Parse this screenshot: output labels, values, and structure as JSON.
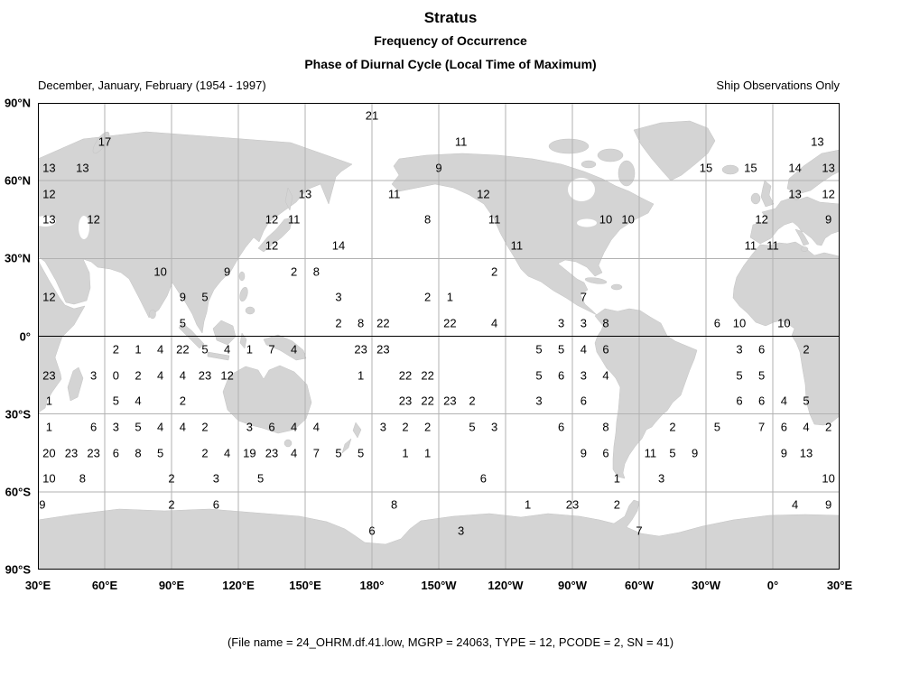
{
  "header": {
    "title": "Stratus",
    "subtitle1": "Frequency of Occurrence",
    "subtitle2": "Phase of Diurnal Cycle (Local Time of Maximum)",
    "period": "December, January, February (1954 - 1997)",
    "source_note": "Ship Observations Only"
  },
  "footer": {
    "file_info": "(File name = 24_OHRM.df.41.low, MGRP = 24063, TYPE = 12, PCODE = 2, SN = 41)"
  },
  "colors": {
    "land": "#d4d4d4",
    "land_outline": "#c3c3c3",
    "grid": "#b2b2b2",
    "equator": "#000000",
    "border": "#000000",
    "text": "#000000"
  },
  "chart_data": {
    "type": "scatter",
    "subtype": "geographic-grid-values",
    "projection": "equirectangular",
    "title": "Stratus",
    "subtitle1": "Frequency of Occurrence",
    "subtitle2": "Phase of Diurnal Cycle (Local Time of Maximum)",
    "value_meaning": "local time of maximum (hour of day, 0-23)",
    "x_axis": {
      "range_deg": [
        30,
        390
      ],
      "ticks": [
        {
          "deg": 30,
          "label": "30°E"
        },
        {
          "deg": 60,
          "label": "60°E"
        },
        {
          "deg": 90,
          "label": "90°E"
        },
        {
          "deg": 120,
          "label": "120°E"
        },
        {
          "deg": 150,
          "label": "150°E"
        },
        {
          "deg": 180,
          "label": "180°"
        },
        {
          "deg": 210,
          "label": "150°W"
        },
        {
          "deg": 240,
          "label": "120°W"
        },
        {
          "deg": 270,
          "label": "90°W"
        },
        {
          "deg": 300,
          "label": "60°W"
        },
        {
          "deg": 330,
          "label": "30°W"
        },
        {
          "deg": 360,
          "label": "0°"
        },
        {
          "deg": 390,
          "label": "30°E"
        }
      ]
    },
    "y_axis": {
      "range_deg": [
        -90,
        90
      ],
      "ticks": [
        {
          "deg": 90,
          "label": "90°N"
        },
        {
          "deg": 60,
          "label": "60°N"
        },
        {
          "deg": 30,
          "label": "30°N"
        },
        {
          "deg": 0,
          "label": "0°"
        },
        {
          "deg": -30,
          "label": "30°S"
        },
        {
          "deg": -60,
          "label": "60°S"
        },
        {
          "deg": -90,
          "label": "90°S"
        }
      ]
    },
    "points": [
      [
        180,
        85,
        21
      ],
      [
        60,
        75,
        17
      ],
      [
        220,
        75,
        11
      ],
      [
        380,
        75,
        13
      ],
      [
        35,
        65,
        13
      ],
      [
        50,
        65,
        13
      ],
      [
        210,
        65,
        9
      ],
      [
        330,
        65,
        15
      ],
      [
        350,
        65,
        15
      ],
      [
        370,
        65,
        14
      ],
      [
        385,
        65,
        13
      ],
      [
        35,
        55,
        12
      ],
      [
        150,
        55,
        13
      ],
      [
        190,
        55,
        11
      ],
      [
        230,
        55,
        12
      ],
      [
        370,
        55,
        13
      ],
      [
        385,
        55,
        12
      ],
      [
        35,
        45,
        13
      ],
      [
        55,
        45,
        12
      ],
      [
        135,
        45,
        12
      ],
      [
        145,
        45,
        11
      ],
      [
        205,
        45,
        8
      ],
      [
        235,
        45,
        11
      ],
      [
        285,
        45,
        10
      ],
      [
        295,
        45,
        10
      ],
      [
        355,
        45,
        12
      ],
      [
        385,
        45,
        9
      ],
      [
        135,
        35,
        12
      ],
      [
        165,
        35,
        14
      ],
      [
        245,
        35,
        11
      ],
      [
        350,
        35,
        11
      ],
      [
        360,
        35,
        11
      ],
      [
        85,
        25,
        10
      ],
      [
        115,
        25,
        9
      ],
      [
        145,
        25,
        2
      ],
      [
        155,
        25,
        8
      ],
      [
        235,
        25,
        2
      ],
      [
        35,
        15,
        12
      ],
      [
        95,
        15,
        9
      ],
      [
        105,
        15,
        5
      ],
      [
        165,
        15,
        3
      ],
      [
        205,
        15,
        2
      ],
      [
        215,
        15,
        1
      ],
      [
        275,
        15,
        7
      ],
      [
        95,
        5,
        5
      ],
      [
        165,
        5,
        2
      ],
      [
        175,
        5,
        8
      ],
      [
        185,
        5,
        22
      ],
      [
        215,
        5,
        22
      ],
      [
        235,
        5,
        4
      ],
      [
        265,
        5,
        3
      ],
      [
        275,
        5,
        3
      ],
      [
        285,
        5,
        8
      ],
      [
        335,
        5,
        6
      ],
      [
        345,
        5,
        10
      ],
      [
        365,
        5,
        10
      ],
      [
        65,
        -5,
        2
      ],
      [
        75,
        -5,
        1
      ],
      [
        85,
        -5,
        4
      ],
      [
        95,
        -5,
        22
      ],
      [
        105,
        -5,
        5
      ],
      [
        115,
        -5,
        4
      ],
      [
        125,
        -5,
        1
      ],
      [
        135,
        -5,
        7
      ],
      [
        145,
        -5,
        4
      ],
      [
        175,
        -5,
        23
      ],
      [
        185,
        -5,
        23
      ],
      [
        255,
        -5,
        5
      ],
      [
        265,
        -5,
        5
      ],
      [
        275,
        -5,
        4
      ],
      [
        285,
        -5,
        6
      ],
      [
        345,
        -5,
        3
      ],
      [
        355,
        -5,
        6
      ],
      [
        375,
        -5,
        2
      ],
      [
        35,
        -15,
        23
      ],
      [
        55,
        -15,
        3
      ],
      [
        65,
        -15,
        0
      ],
      [
        75,
        -15,
        2
      ],
      [
        85,
        -15,
        4
      ],
      [
        95,
        -15,
        4
      ],
      [
        105,
        -15,
        23
      ],
      [
        115,
        -15,
        12
      ],
      [
        175,
        -15,
        1
      ],
      [
        195,
        -15,
        22
      ],
      [
        205,
        -15,
        22
      ],
      [
        255,
        -15,
        5
      ],
      [
        265,
        -15,
        6
      ],
      [
        275,
        -15,
        3
      ],
      [
        285,
        -15,
        4
      ],
      [
        345,
        -15,
        5
      ],
      [
        355,
        -15,
        5
      ],
      [
        35,
        -25,
        1
      ],
      [
        65,
        -25,
        5
      ],
      [
        75,
        -25,
        4
      ],
      [
        95,
        -25,
        2
      ],
      [
        195,
        -25,
        23
      ],
      [
        205,
        -25,
        22
      ],
      [
        215,
        -25,
        23
      ],
      [
        225,
        -25,
        2
      ],
      [
        255,
        -25,
        3
      ],
      [
        275,
        -25,
        6
      ],
      [
        345,
        -25,
        6
      ],
      [
        355,
        -25,
        6
      ],
      [
        365,
        -25,
        4
      ],
      [
        375,
        -25,
        5
      ],
      [
        35,
        -35,
        1
      ],
      [
        55,
        -35,
        6
      ],
      [
        65,
        -35,
        3
      ],
      [
        75,
        -35,
        5
      ],
      [
        85,
        -35,
        4
      ],
      [
        95,
        -35,
        4
      ],
      [
        105,
        -35,
        2
      ],
      [
        125,
        -35,
        3
      ],
      [
        135,
        -35,
        6
      ],
      [
        145,
        -35,
        4
      ],
      [
        155,
        -35,
        4
      ],
      [
        185,
        -35,
        3
      ],
      [
        195,
        -35,
        2
      ],
      [
        205,
        -35,
        2
      ],
      [
        225,
        -35,
        5
      ],
      [
        235,
        -35,
        3
      ],
      [
        265,
        -35,
        6
      ],
      [
        285,
        -35,
        8
      ],
      [
        315,
        -35,
        2
      ],
      [
        335,
        -35,
        5
      ],
      [
        355,
        -35,
        7
      ],
      [
        365,
        -35,
        6
      ],
      [
        375,
        -35,
        4
      ],
      [
        385,
        -35,
        2
      ],
      [
        35,
        -45,
        20
      ],
      [
        45,
        -45,
        23
      ],
      [
        55,
        -45,
        23
      ],
      [
        65,
        -45,
        6
      ],
      [
        75,
        -45,
        8
      ],
      [
        85,
        -45,
        5
      ],
      [
        105,
        -45,
        2
      ],
      [
        115,
        -45,
        4
      ],
      [
        125,
        -45,
        19
      ],
      [
        135,
        -45,
        23
      ],
      [
        145,
        -45,
        4
      ],
      [
        155,
        -45,
        7
      ],
      [
        165,
        -45,
        5
      ],
      [
        175,
        -45,
        5
      ],
      [
        195,
        -45,
        1
      ],
      [
        205,
        -45,
        1
      ],
      [
        275,
        -45,
        9
      ],
      [
        285,
        -45,
        6
      ],
      [
        305,
        -45,
        11
      ],
      [
        315,
        -45,
        5
      ],
      [
        325,
        -45,
        9
      ],
      [
        365,
        -45,
        9
      ],
      [
        375,
        -45,
        13
      ],
      [
        35,
        -55,
        10
      ],
      [
        50,
        -55,
        8
      ],
      [
        90,
        -55,
        2
      ],
      [
        110,
        -55,
        3
      ],
      [
        130,
        -55,
        5
      ],
      [
        230,
        -55,
        6
      ],
      [
        290,
        -55,
        1
      ],
      [
        310,
        -55,
        3
      ],
      [
        385,
        -55,
        10
      ],
      [
        32,
        -65,
        9
      ],
      [
        90,
        -65,
        2
      ],
      [
        110,
        -65,
        6
      ],
      [
        190,
        -65,
        8
      ],
      [
        250,
        -65,
        1
      ],
      [
        270,
        -65,
        23
      ],
      [
        290,
        -65,
        2
      ],
      [
        370,
        -65,
        4
      ],
      [
        385,
        -65,
        9
      ],
      [
        180,
        -75,
        6
      ],
      [
        220,
        -75,
        3
      ],
      [
        300,
        -75,
        7
      ]
    ]
  }
}
